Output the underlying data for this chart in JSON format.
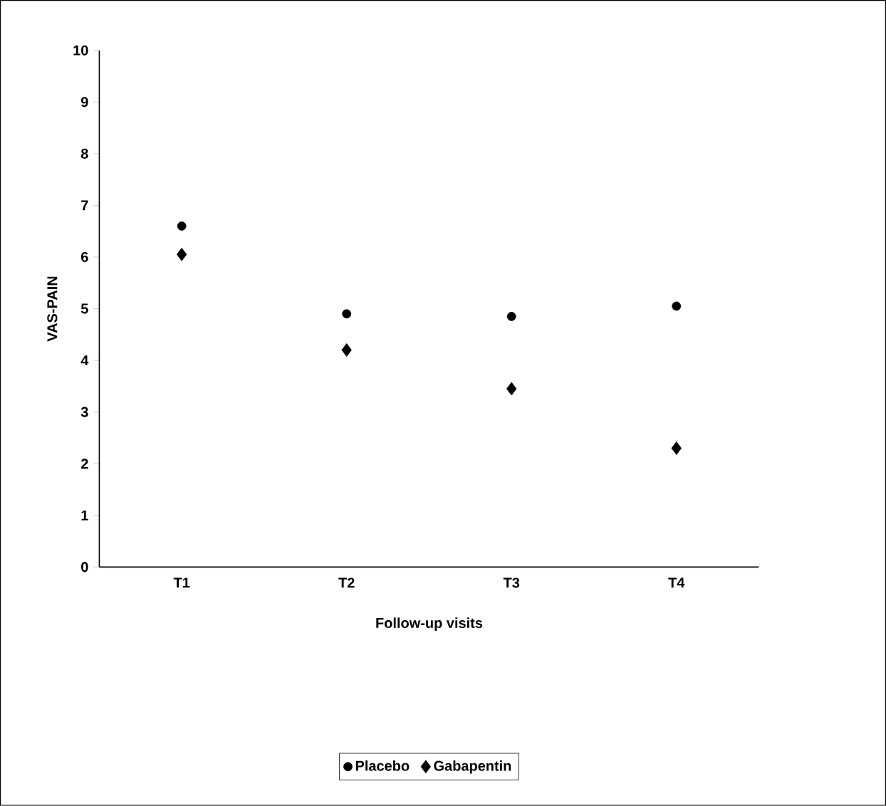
{
  "chart_data": {
    "type": "scatter",
    "xlabel": "Follow-up visits",
    "ylabel": "VAS-PAIN",
    "categories": [
      "T1",
      "T2",
      "T3",
      "T4"
    ],
    "series": [
      {
        "name": "Placebo",
        "color": "#000000",
        "values": [
          6.6,
          4.9,
          4.85,
          5.05
        ]
      },
      {
        "name": "Gabapentin",
        "color": "#000000",
        "marker": "diamond",
        "values": [
          6.05,
          4.2,
          3.45,
          2.3
        ]
      }
    ],
    "ylim": [
      0,
      10
    ],
    "yticks": [
      0,
      1,
      2,
      3,
      4,
      5,
      6,
      7,
      8,
      9,
      10
    ],
    "grid": false,
    "legend": "bottom"
  }
}
